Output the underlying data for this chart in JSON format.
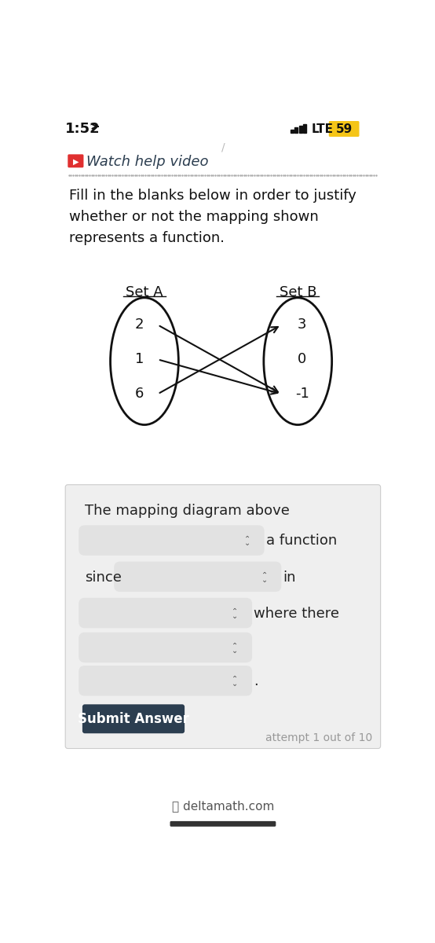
{
  "bg_color": "#ffffff",
  "time_text": "1:52",
  "lte_text": "LTE",
  "battery_text": "59",
  "battery_bg": "#f5c518",
  "watch_video_text": "Watch help video",
  "watch_icon_color": "#e03030",
  "instruction_text": "Fill in the blanks below in order to justify\nwhether or not the mapping shown\nrepresents a function.",
  "set_a_label": "Set A",
  "set_b_label": "Set B",
  "set_a_elements": [
    "2",
    "1",
    "6"
  ],
  "set_b_elements": [
    "3",
    "0",
    "-1"
  ],
  "arrows": [
    {
      "from_idx": 0,
      "to_idx": 2
    },
    {
      "from_idx": 1,
      "to_idx": 2
    },
    {
      "from_idx": 2,
      "to_idx": 0
    }
  ],
  "form_bg": "#efefef",
  "form_text1": "The mapping diagram above",
  "form_label1": "a function",
  "form_label2": "in",
  "form_label3": "where there",
  "form_since": "since",
  "form_dot": ".",
  "dropdown_bg": "#e2e2e2",
  "submit_bg": "#2c3e50",
  "submit_text": "Submit Answer",
  "submit_text_color": "#ffffff",
  "attempt_text": "attempt 1 out of 10",
  "footer_text": "deltamath.com",
  "dark_text": "#2c3e50",
  "light_text": "#999999"
}
